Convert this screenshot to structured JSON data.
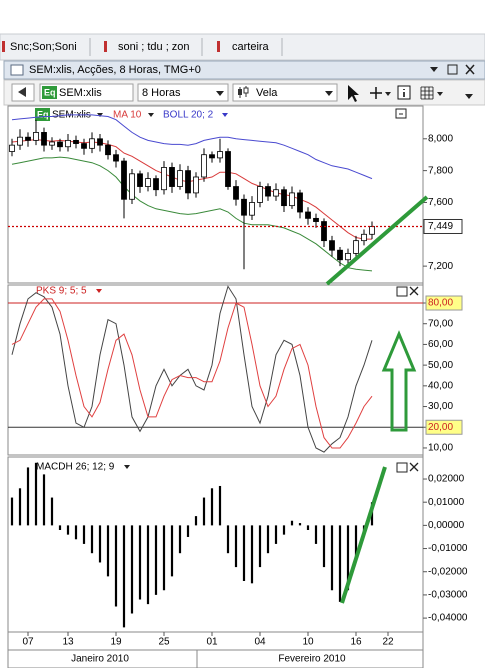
{
  "tabs": [
    "Snc;Son;Soni",
    "soni ; tdu ; zon",
    "carteira"
  ],
  "window": {
    "title": "SEM:xlis, Acções, 8 Horas, TMG+0"
  },
  "toolbar": {
    "icon": "Eq",
    "symbol": "SEM:xlis",
    "interval": "8 Horas",
    "style": "Vela"
  },
  "chart_data": [
    {
      "type": "candlestick",
      "icon": "Eq",
      "name": "SEM:xlis",
      "up_color": "#ffffff",
      "down_color": "#000000",
      "open": [
        7920,
        7960,
        8010,
        7990,
        8040,
        7960,
        7980,
        7950,
        7990,
        7970,
        7940,
        8000,
        7960,
        7900,
        7860,
        7620,
        7780,
        7700,
        7750,
        7680,
        7820,
        7700,
        7800,
        7660,
        7760,
        7900,
        7880,
        7920,
        7700,
        7620,
        7520,
        7600,
        7700,
        7640,
        7680,
        7580,
        7660,
        7540,
        7500,
        7480,
        7360,
        7300,
        7240,
        7280,
        7360,
        7400,
        null,
        null
      ],
      "high": [
        8000,
        8060,
        8040,
        8120,
        8070,
        8010,
        8000,
        8030,
        8020,
        8000,
        8040,
        8030,
        7990,
        7930,
        7880,
        7810,
        7800,
        7790,
        7770,
        7860,
        7850,
        7840,
        7830,
        7790,
        7940,
        7920,
        8000,
        7940,
        7740,
        7650,
        7640,
        7730,
        7720,
        7720,
        7700,
        7700,
        7680,
        7570,
        7530,
        7500,
        7390,
        7320,
        7310,
        7390,
        7430,
        7480,
        null,
        null
      ],
      "low": [
        7890,
        7930,
        7950,
        7960,
        7920,
        7930,
        7920,
        7920,
        7940,
        7900,
        7910,
        7920,
        7870,
        7820,
        7500,
        7590,
        7660,
        7670,
        7640,
        7650,
        7660,
        7680,
        7620,
        7630,
        7730,
        7850,
        7850,
        7680,
        7580,
        7180,
        7490,
        7570,
        7610,
        7610,
        7540,
        7560,
        7500,
        7460,
        7440,
        7320,
        7260,
        7200,
        7210,
        7250,
        7330,
        7370,
        null,
        null
      ],
      "close": [
        7960,
        8010,
        7990,
        8040,
        7960,
        7980,
        7950,
        7990,
        7970,
        7940,
        8000,
        7960,
        7900,
        7860,
        7620,
        7780,
        7700,
        7750,
        7680,
        7820,
        7700,
        7800,
        7660,
        7760,
        7900,
        7880,
        7920,
        7700,
        7620,
        7520,
        7600,
        7700,
        7640,
        7680,
        7580,
        7660,
        7540,
        7500,
        7480,
        7360,
        7300,
        7240,
        7280,
        7360,
        7400,
        7449,
        null,
        null
      ],
      "ma": {
        "name": "MA 10",
        "color": "#d83a3a",
        "values": [
          7980,
          7985,
          7990,
          7995,
          7990,
          7985,
          7990,
          7985,
          7980,
          7975,
          7980,
          7975,
          7965,
          7950,
          7910,
          7890,
          7860,
          7830,
          7800,
          7780,
          7760,
          7740,
          7730,
          7740,
          7750,
          7760,
          7790,
          7790,
          7780,
          7750,
          7720,
          7700,
          7680,
          7660,
          7650,
          7640,
          7620,
          7600,
          7570,
          7530,
          7490,
          7450,
          7410,
          7380,
          7370,
          7370,
          null,
          null
        ]
      },
      "boll": {
        "name": "BOLL 20; 2",
        "color": "#3838c8",
        "upper_color": "#4a4ad0",
        "lower_color": "#3a8a3a",
        "upper": [
          8120,
          8125,
          8130,
          8135,
          8140,
          8140,
          8145,
          8150,
          8150,
          8150,
          8150,
          8145,
          8140,
          8120,
          8080,
          8040,
          8010,
          7990,
          7980,
          7970,
          7965,
          7965,
          7960,
          7970,
          7990,
          8000,
          8010,
          8010,
          8000,
          7995,
          7990,
          7985,
          7980,
          7975,
          7960,
          7940,
          7920,
          7900,
          7870,
          7850,
          7830,
          7820,
          7810,
          7790,
          7770,
          7750,
          null,
          null
        ],
        "lower": [
          7840,
          7850,
          7860,
          7870,
          7880,
          7880,
          7885,
          7880,
          7870,
          7860,
          7850,
          7830,
          7800,
          7760,
          7700,
          7650,
          7610,
          7580,
          7560,
          7550,
          7540,
          7530,
          7525,
          7530,
          7540,
          7550,
          7560,
          7540,
          7500,
          7470,
          7460,
          7460,
          7460,
          7450,
          7440,
          7420,
          7400,
          7370,
          7340,
          7300,
          7260,
          7220,
          7190,
          7180,
          7175,
          7170,
          null,
          null
        ]
      },
      "last": {
        "value": 7449,
        "label": "7,449",
        "color": "#cc0000"
      },
      "ylim": [
        7094,
        8206
      ],
      "yticks": [
        {
          "value": 8000,
          "label": "8,000"
        },
        {
          "value": 7800,
          "label": "7,800"
        },
        {
          "value": 7600,
          "label": "7,600"
        },
        {
          "value": 7200,
          "label": "7,200"
        }
      ]
    },
    {
      "type": "line",
      "indicator": "PKS 9; 5; 5",
      "indicator_color": "#cc2222",
      "series": [
        {
          "color": "#444444",
          "values": [
            55,
            70,
            82,
            85,
            83,
            78,
            65,
            40,
            22,
            20,
            30,
            55,
            72,
            70,
            50,
            25,
            18,
            25,
            40,
            48,
            40,
            45,
            48,
            40,
            38,
            50,
            75,
            88,
            82,
            55,
            30,
            22,
            35,
            55,
            62,
            60,
            45,
            20,
            10,
            8,
            12,
            15,
            25,
            40,
            50,
            62,
            null,
            null
          ]
        },
        {
          "color": "#e04040",
          "values": [
            60,
            62,
            70,
            78,
            82,
            82,
            76,
            62,
            45,
            30,
            25,
            32,
            48,
            62,
            65,
            55,
            38,
            25,
            25,
            35,
            43,
            45,
            44,
            44,
            42,
            42,
            52,
            68,
            80,
            78,
            60,
            40,
            30,
            35,
            48,
            58,
            60,
            50,
            30,
            15,
            10,
            10,
            15,
            22,
            30,
            35,
            null,
            null
          ]
        }
      ],
      "levels": [
        80,
        20
      ],
      "level_colors": [
        "#cc2222",
        "#333333"
      ],
      "highlight": "#ffff88",
      "ylim": [
        6.6,
        88.7
      ],
      "yticks": [
        {
          "value": 80,
          "label": "80,00"
        },
        {
          "value": 70,
          "label": "70,00"
        },
        {
          "value": 60,
          "label": "60,00"
        },
        {
          "value": 50,
          "label": "50,00"
        },
        {
          "value": 40,
          "label": "40,00"
        },
        {
          "value": 30,
          "label": "30,00"
        },
        {
          "value": 20,
          "label": "20,00"
        },
        {
          "value": 10,
          "label": "10,00"
        }
      ]
    },
    {
      "type": "bar",
      "indicator": "MACDH 26; 12; 9",
      "color": "#000000",
      "categories": [
        null,
        null,
        "07",
        null,
        null,
        null,
        null,
        "13",
        null,
        null,
        null,
        null,
        null,
        "19",
        null,
        null,
        null,
        null,
        null,
        "25",
        null,
        null,
        null,
        null,
        null,
        "01",
        null,
        null,
        null,
        null,
        null,
        "04",
        null,
        null,
        null,
        null,
        null,
        "10",
        null,
        null,
        null,
        null,
        null,
        "16",
        null,
        null,
        null,
        "22"
      ],
      "values": [
        0.012,
        0.016,
        0.025,
        0.027,
        0.022,
        0.012,
        -0.002,
        -0.004,
        -0.006,
        -0.008,
        -0.012,
        -0.016,
        -0.022,
        -0.035,
        -0.044,
        -0.038,
        -0.032,
        -0.034,
        -0.03,
        -0.028,
        -0.022,
        -0.012,
        -0.005,
        0.004,
        0.012,
        0.016,
        0.017,
        -0.012,
        -0.018,
        -0.024,
        -0.025,
        -0.018,
        -0.012,
        -0.008,
        -0.004,
        0.002,
        0.001,
        -0.002,
        -0.008,
        -0.018,
        -0.028,
        -0.033,
        -0.028,
        -0.015,
        -0.003,
        0.01,
        null,
        null
      ],
      "months": [
        "Janeiro 2010",
        "Fevereiro 2010"
      ],
      "ylim": [
        -0.046,
        0.0295
      ],
      "yticks": [
        {
          "value": 0.02,
          "label": "0,02000"
        },
        {
          "value": 0.01,
          "label": "0,01000"
        },
        {
          "value": 0,
          "label": "0,00000"
        },
        {
          "value": -0.01,
          "label": "-0,01000"
        },
        {
          "value": -0.02,
          "label": "-0,02000"
        },
        {
          "value": -0.03,
          "label": "-0,03000"
        },
        {
          "value": -0.04,
          "label": "-0,04000"
        }
      ]
    }
  ]
}
